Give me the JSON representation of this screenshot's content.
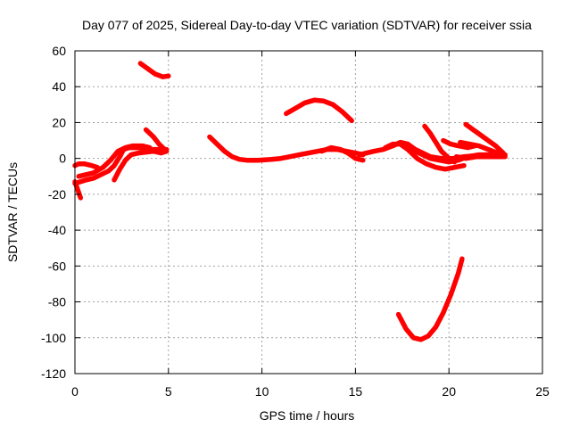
{
  "chart_data": {
    "type": "scatter",
    "title": "Day 077 of 2025, Sidereal Day-to-day VTEC variation (SDTVAR) for receiver ssia",
    "xlabel": "GPS time / hours",
    "ylabel": "SDTVAR / TECUs",
    "xlim": [
      0,
      25
    ],
    "ylim": [
      -120,
      60
    ],
    "x_ticks": [
      0,
      5,
      10,
      15,
      20,
      25
    ],
    "y_ticks": [
      -120,
      -100,
      -80,
      -60,
      -40,
      -20,
      0,
      20,
      40,
      60
    ],
    "grid": true,
    "color": "#ff0000",
    "series": [
      {
        "points": [
          [
            0.0,
            -13
          ],
          [
            0.1,
            -16
          ],
          [
            0.2,
            -19
          ],
          [
            0.3,
            -22
          ]
        ]
      },
      {
        "points": [
          [
            0.0,
            -4
          ],
          [
            0.2,
            -3
          ],
          [
            0.5,
            -3
          ],
          [
            0.9,
            -4
          ],
          [
            1.2,
            -5
          ]
        ]
      },
      {
        "points": [
          [
            0.0,
            -14
          ],
          [
            0.3,
            -13
          ],
          [
            0.6,
            -12
          ],
          [
            1.0,
            -11
          ],
          [
            1.4,
            -9
          ],
          [
            1.8,
            -7
          ],
          [
            2.1,
            -4
          ],
          [
            2.4,
            1
          ],
          [
            2.6,
            5
          ],
          [
            2.9,
            6
          ],
          [
            3.4,
            6
          ],
          [
            4.0,
            5
          ],
          [
            4.6,
            5
          ],
          [
            4.9,
            5
          ]
        ]
      },
      {
        "points": [
          [
            0.2,
            -10
          ],
          [
            0.6,
            -9
          ],
          [
            1.0,
            -8
          ],
          [
            1.5,
            -5
          ],
          [
            1.9,
            -1
          ],
          [
            2.3,
            4
          ],
          [
            2.7,
            6
          ],
          [
            3.1,
            7
          ],
          [
            3.6,
            7
          ],
          [
            4.0,
            6
          ]
        ]
      },
      {
        "points": [
          [
            2.1,
            -12
          ],
          [
            2.4,
            -6
          ],
          [
            2.7,
            -1
          ],
          [
            3.0,
            2
          ],
          [
            3.4,
            3
          ],
          [
            3.8,
            3.5
          ],
          [
            4.2,
            4
          ],
          [
            4.6,
            3
          ],
          [
            4.9,
            4
          ]
        ]
      },
      {
        "points": [
          [
            3.8,
            16
          ],
          [
            4.2,
            12
          ],
          [
            4.5,
            8
          ],
          [
            4.8,
            5
          ]
        ]
      },
      {
        "points": [
          [
            3.5,
            53
          ],
          [
            3.9,
            50
          ],
          [
            4.3,
            47
          ],
          [
            4.7,
            45.5
          ],
          [
            5.0,
            46
          ]
        ]
      },
      {
        "points": [
          [
            7.2,
            12
          ],
          [
            7.6,
            8
          ],
          [
            8.0,
            4
          ],
          [
            8.4,
            1
          ],
          [
            8.8,
            -0.5
          ],
          [
            9.2,
            -1
          ],
          [
            9.8,
            -1
          ],
          [
            10.5,
            -0.5
          ],
          [
            11.0,
            0
          ],
          [
            11.5,
            1
          ],
          [
            12.0,
            2
          ],
          [
            12.5,
            3
          ],
          [
            13.0,
            4
          ],
          [
            13.5,
            5
          ],
          [
            14.0,
            5
          ],
          [
            14.5,
            4
          ],
          [
            15.0,
            3
          ],
          [
            15.4,
            2
          ]
        ]
      },
      {
        "points": [
          [
            13.2,
            4
          ],
          [
            13.7,
            6
          ],
          [
            14.2,
            5
          ],
          [
            14.6,
            3
          ],
          [
            15.0,
            0
          ],
          [
            15.4,
            -1
          ]
        ]
      },
      {
        "points": [
          [
            11.3,
            25
          ],
          [
            11.8,
            28
          ],
          [
            12.3,
            31
          ],
          [
            12.8,
            32.5
          ],
          [
            13.3,
            32
          ],
          [
            13.8,
            30
          ],
          [
            14.3,
            26
          ],
          [
            14.8,
            21
          ]
        ]
      },
      {
        "points": [
          [
            15.2,
            2
          ],
          [
            15.6,
            3
          ],
          [
            16.0,
            4
          ],
          [
            16.5,
            5
          ],
          [
            17.0,
            7
          ],
          [
            17.4,
            9
          ],
          [
            17.8,
            8
          ],
          [
            18.2,
            5
          ],
          [
            18.6,
            3
          ],
          [
            19.0,
            1
          ],
          [
            19.6,
            0
          ],
          [
            20.2,
            0
          ],
          [
            20.8,
            1
          ],
          [
            21.4,
            1.5
          ],
          [
            22.0,
            2
          ],
          [
            22.6,
            2
          ],
          [
            23.0,
            2
          ]
        ]
      },
      {
        "points": [
          [
            16.6,
            6
          ],
          [
            17.0,
            8
          ],
          [
            17.4,
            8
          ],
          [
            17.8,
            5
          ],
          [
            18.3,
            0
          ],
          [
            18.8,
            -3
          ],
          [
            19.3,
            -5
          ],
          [
            19.8,
            -6
          ],
          [
            20.3,
            -5
          ],
          [
            20.8,
            -4
          ]
        ]
      },
      {
        "points": [
          [
            17.8,
            6
          ],
          [
            18.4,
            3
          ],
          [
            19.0,
            0
          ],
          [
            19.5,
            -1
          ],
          [
            20.0,
            -2
          ],
          [
            20.5,
            -1
          ],
          [
            21.0,
            1
          ],
          [
            21.6,
            2
          ],
          [
            22.2,
            2
          ],
          [
            22.8,
            2
          ]
        ]
      },
      {
        "points": [
          [
            18.7,
            18
          ],
          [
            19.0,
            14
          ],
          [
            19.3,
            9
          ],
          [
            19.6,
            4
          ],
          [
            20.0,
            0
          ],
          [
            20.3,
            -2
          ]
        ]
      },
      {
        "points": [
          [
            19.7,
            10
          ],
          [
            20.1,
            8
          ],
          [
            20.5,
            7
          ],
          [
            21.0,
            6
          ],
          [
            21.4,
            7
          ]
        ]
      },
      {
        "points": [
          [
            20.9,
            19
          ],
          [
            21.3,
            16
          ],
          [
            21.7,
            13
          ],
          [
            22.1,
            10
          ],
          [
            22.5,
            7
          ],
          [
            22.9,
            3
          ]
        ]
      },
      {
        "points": [
          [
            20.6,
            9
          ],
          [
            21.1,
            8
          ],
          [
            21.6,
            7
          ],
          [
            22.1,
            5
          ],
          [
            22.6,
            3
          ],
          [
            23.0,
            2
          ]
        ]
      },
      {
        "points": [
          [
            20.4,
            1
          ],
          [
            20.9,
            0
          ],
          [
            21.5,
            1
          ],
          [
            22.1,
            1
          ],
          [
            22.7,
            1
          ],
          [
            23.0,
            1
          ]
        ]
      },
      {
        "points": [
          [
            17.3,
            -87
          ],
          [
            17.7,
            -95
          ],
          [
            18.1,
            -100
          ],
          [
            18.5,
            -101
          ],
          [
            18.9,
            -99
          ],
          [
            19.3,
            -94
          ],
          [
            19.7,
            -86
          ],
          [
            20.1,
            -76
          ],
          [
            20.5,
            -64
          ],
          [
            20.7,
            -56
          ]
        ]
      }
    ]
  }
}
